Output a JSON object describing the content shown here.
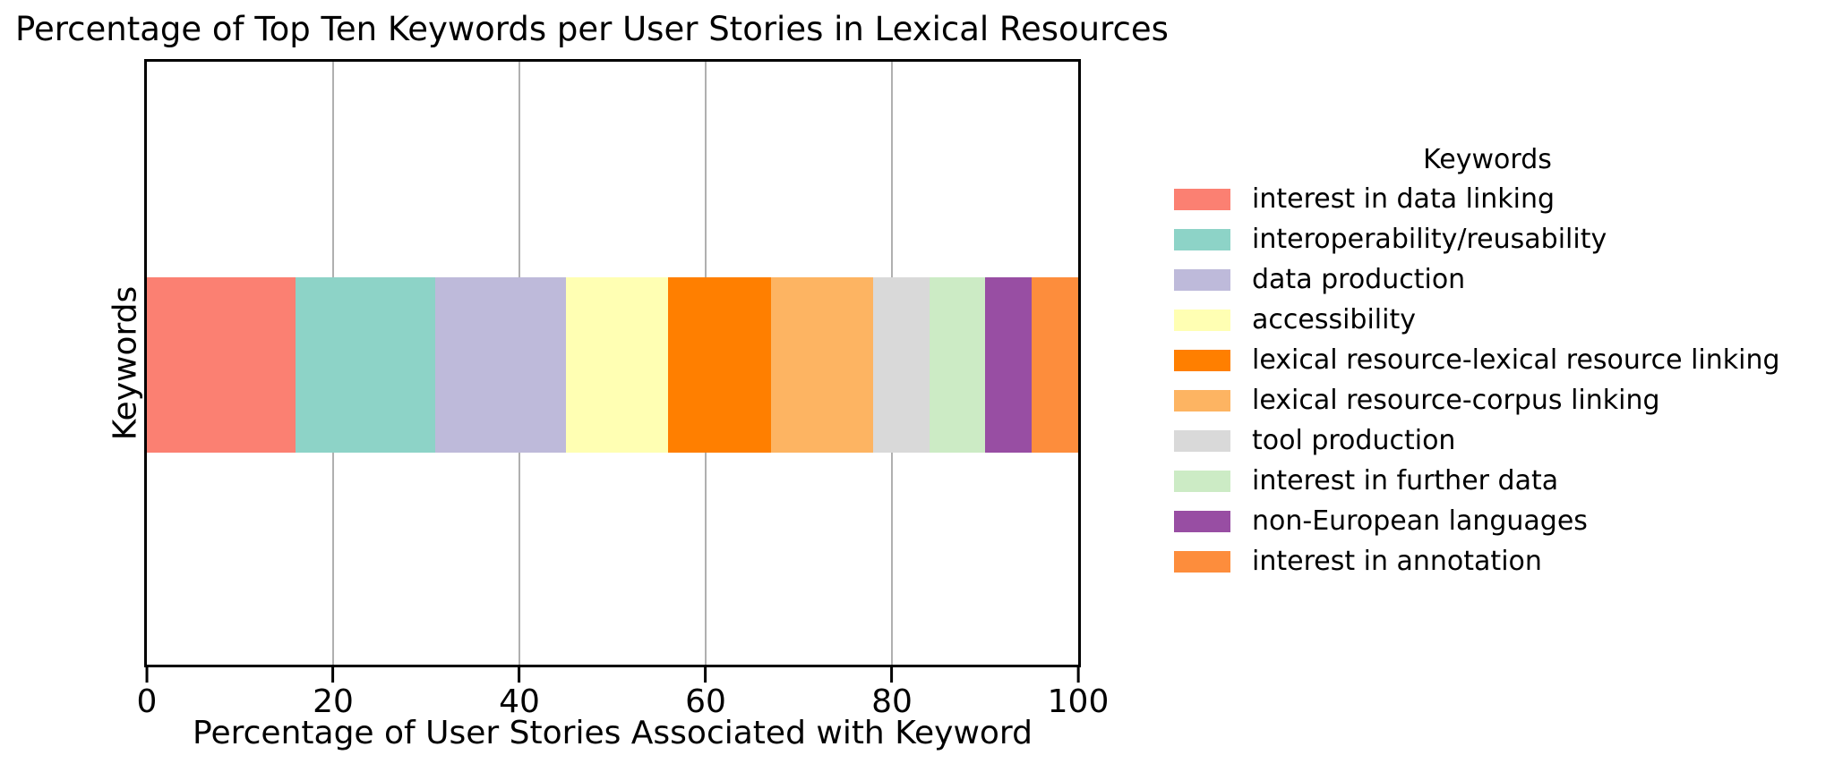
{
  "chart_data": {
    "type": "bar",
    "stacked": true,
    "orientation": "horizontal",
    "title": "Percentage of Top Ten Keywords per User Stories in Lexical Resources",
    "xlabel": "Percentage of User Stories Associated with Keyword",
    "ylabel": "Keywords",
    "legend_title": "Keywords",
    "legend_position": "right",
    "xlim": [
      0,
      100
    ],
    "xticks": [
      0,
      20,
      40,
      60,
      80,
      100
    ],
    "grid": true,
    "categories": [
      "Keywords"
    ],
    "series": [
      {
        "name": "interest in data linking",
        "value": 16,
        "color": "#fb8072"
      },
      {
        "name": "interoperability/reusability",
        "value": 15,
        "color": "#8dd3c7"
      },
      {
        "name": "data production",
        "value": 14,
        "color": "#bebada"
      },
      {
        "name": "accessibility",
        "value": 11,
        "color": "#ffffb3"
      },
      {
        "name": "lexical resource-lexical resource linking",
        "value": 11,
        "color": "#ff7f00"
      },
      {
        "name": "lexical resource-corpus linking",
        "value": 11,
        "color": "#fdb462"
      },
      {
        "name": "tool production",
        "value": 6,
        "color": "#d9d9d9"
      },
      {
        "name": "interest in further data",
        "value": 6,
        "color": "#ccebc5"
      },
      {
        "name": "non-European languages",
        "value": 5,
        "color": "#984ea3"
      },
      {
        "name": "interest in annotation",
        "value": 5,
        "color": "#fd8d3c"
      }
    ],
    "colors": {
      "grid": "#b0b0b0",
      "frame": "#000000",
      "background": "#ffffff",
      "text": "#000000"
    }
  }
}
